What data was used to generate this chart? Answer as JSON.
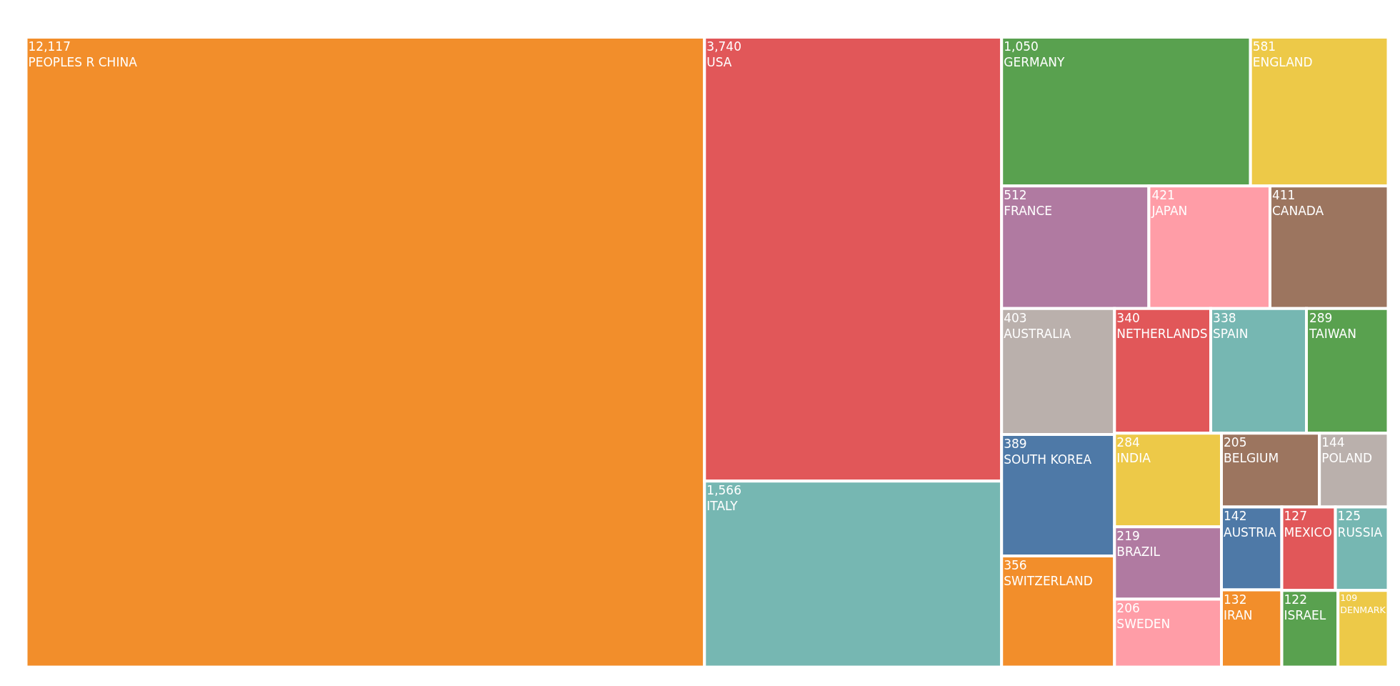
{
  "chart_data": {
    "type": "other",
    "categories": [
      "PEOPLES R CHINA",
      "USA",
      "ITALY",
      "GERMANY",
      "ENGLAND",
      "FRANCE",
      "JAPAN",
      "CANADA",
      "AUSTRALIA",
      "SOUTH KOREA",
      "SWITZERLAND",
      "NETHERLANDS",
      "SPAIN",
      "TAIWAN",
      "INDIA",
      "BRAZIL",
      "SWEDEN",
      "BELGIUM",
      "POLAND",
      "AUSTRIA",
      "IRAN",
      "MEXICO",
      "RUSSIA",
      "ISRAEL",
      "DENMARK"
    ],
    "values": [
      12117,
      3740,
      1566,
      1050,
      581,
      512,
      421,
      411,
      403,
      389,
      356,
      340,
      338,
      289,
      284,
      219,
      206,
      205,
      144,
      142,
      132,
      127,
      125,
      122,
      109
    ],
    "value_labels": [
      "12,117",
      "3,740",
      "1,566",
      "1,050",
      "581",
      "512",
      "421",
      "411",
      "403",
      "389",
      "356",
      "340",
      "338",
      "289",
      "284",
      "219",
      "206",
      "205",
      "144",
      "142",
      "132",
      "127",
      "125",
      "122",
      "109"
    ],
    "colors": [
      "#f28e2b",
      "#e15759",
      "#76b7b2",
      "#59a14f",
      "#edc948",
      "#b07aa1",
      "#ff9da7",
      "#9c755f",
      "#bab0ac",
      "#4e79a7",
      "#f28e2b",
      "#e15759",
      "#76b7b2",
      "#59a14f",
      "#edc948",
      "#b07aa1",
      "#ff9da7",
      "#9c755f",
      "#bab0ac",
      "#4e79a7",
      "#f28e2b",
      "#e15759",
      "#76b7b2",
      "#59a14f",
      "#edc948"
    ]
  }
}
